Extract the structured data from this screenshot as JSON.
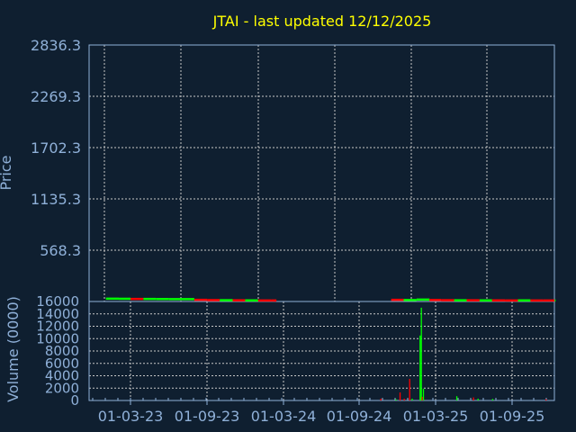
{
  "title": "JTAI - last updated 12/12/2025",
  "chart_data": [
    {
      "type": "candlestick",
      "ylabel": "Price",
      "ylim": [
        1.3,
        2836.3
      ],
      "yticks": [
        "2836.3",
        "2269.3",
        "1702.3",
        "1135.3",
        "568.3"
      ],
      "grid": true,
      "colors": {
        "up": "#00ff00",
        "down": "#ff0000"
      },
      "points": [
        {
          "date": "2023-01-01",
          "close": 25,
          "dir": "up"
        },
        {
          "date": "2023-02-01",
          "close": 24,
          "dir": "up"
        },
        {
          "date": "2023-03-01",
          "close": 22,
          "dir": "down"
        },
        {
          "date": "2023-04-01",
          "close": 22,
          "dir": "up"
        },
        {
          "date": "2023-05-01",
          "close": 21,
          "dir": "up"
        },
        {
          "date": "2023-06-01",
          "close": 20,
          "dir": "up"
        },
        {
          "date": "2023-07-01",
          "close": 20,
          "dir": "up"
        },
        {
          "date": "2023-08-01",
          "close": 12,
          "dir": "down"
        },
        {
          "date": "2023-09-01",
          "close": 9,
          "dir": "down"
        },
        {
          "date": "2023-10-01",
          "close": 8,
          "dir": "up"
        },
        {
          "date": "2023-11-01",
          "close": 7,
          "dir": "down"
        },
        {
          "date": "2023-12-01",
          "close": 6,
          "dir": "up"
        },
        {
          "date": "2024-01-01",
          "close": 5,
          "dir": "down"
        },
        {
          "date": "2024-02-01",
          "close": 5,
          "dir": "down"
        },
        {
          "date": "2024-11-15",
          "close": 12,
          "dir": "down"
        },
        {
          "date": "2024-12-15",
          "close": 10,
          "dir": "up"
        },
        {
          "date": "2025-01-15",
          "close": 15,
          "dir": "up"
        },
        {
          "date": "2025-02-15",
          "close": 10,
          "dir": "down"
        },
        {
          "date": "2025-03-15",
          "close": 8,
          "dir": "down"
        },
        {
          "date": "2025-04-15",
          "close": 7,
          "dir": "up"
        },
        {
          "date": "2025-05-15",
          "close": 7,
          "dir": "down"
        },
        {
          "date": "2025-06-15",
          "close": 6,
          "dir": "up"
        },
        {
          "date": "2025-07-15",
          "close": 6,
          "dir": "down"
        },
        {
          "date": "2025-08-15",
          "close": 5,
          "dir": "down"
        },
        {
          "date": "2025-09-15",
          "close": 6,
          "dir": "up"
        },
        {
          "date": "2025-10-15",
          "close": 5,
          "dir": "down"
        },
        {
          "date": "2025-11-15",
          "close": 5,
          "dir": "down"
        },
        {
          "date": "2025-12-12",
          "close": 5,
          "dir": "up"
        }
      ]
    },
    {
      "type": "bar",
      "ylabel": "Volume (0000)",
      "ylim": [
        0,
        16000
      ],
      "yticks": [
        "16000",
        "14000",
        "12000",
        "10000",
        "8000",
        "6000",
        "4000",
        "2000",
        "0"
      ],
      "xticks": [
        "01-03-23",
        "01-09-23",
        "01-03-24",
        "01-09-24",
        "01-03-25",
        "01-09-25"
      ],
      "grid": true,
      "bars": [
        {
          "date": "2024-10-20",
          "value": 300,
          "dir": "down"
        },
        {
          "date": "2024-11-25",
          "value": 200,
          "dir": "up"
        },
        {
          "date": "2024-12-05",
          "value": 1300,
          "dir": "down"
        },
        {
          "date": "2024-12-15",
          "value": 300,
          "dir": "down"
        },
        {
          "date": "2024-12-28",
          "value": 3500,
          "dir": "down"
        },
        {
          "date": "2025-01-03",
          "value": 300,
          "dir": "up"
        },
        {
          "date": "2025-01-22",
          "value": 10500,
          "dir": "up"
        },
        {
          "date": "2025-01-25",
          "value": 15000,
          "dir": "up"
        },
        {
          "date": "2025-01-27",
          "value": 600,
          "dir": "down"
        },
        {
          "date": "2025-01-30",
          "value": 1900,
          "dir": "up"
        },
        {
          "date": "2025-04-20",
          "value": 700,
          "dir": "up"
        },
        {
          "date": "2025-05-30",
          "value": 500,
          "dir": "down"
        },
        {
          "date": "2025-06-10",
          "value": 300,
          "dir": "up"
        },
        {
          "date": "2025-07-15",
          "value": 250,
          "dir": "up"
        },
        {
          "date": "2025-11-20",
          "value": 200,
          "dir": "down"
        }
      ]
    }
  ]
}
